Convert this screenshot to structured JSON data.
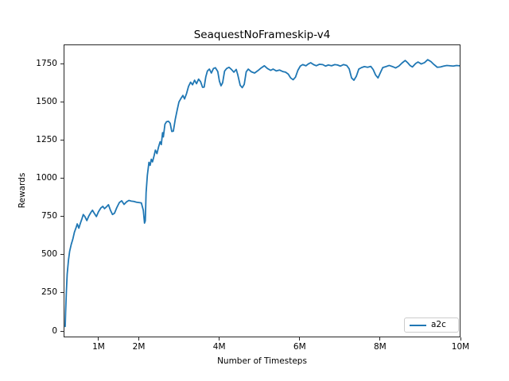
{
  "chart_data": {
    "type": "line",
    "title": "SeaquestNoFrameskip-v4",
    "xlabel": "Number of Timesteps",
    "ylabel": "Rewards",
    "grid": false,
    "line_color": "#1f77b4",
    "legend": {
      "position": "lower right",
      "entries": [
        {
          "label": "a2c",
          "color": "#1f77b4"
        }
      ]
    },
    "axes": {
      "xlim_millions": [
        0.13,
        10.0
      ],
      "ylim": [
        -41,
        1875
      ],
      "x_ticks": [
        {
          "value_millions": 1,
          "label": "1M"
        },
        {
          "value_millions": 2,
          "label": "2M"
        },
        {
          "value_millions": 4,
          "label": "4M"
        },
        {
          "value_millions": 6,
          "label": "6M"
        },
        {
          "value_millions": 8,
          "label": "8M"
        },
        {
          "value_millions": 10,
          "label": "10M"
        }
      ],
      "y_ticks": [
        0,
        250,
        500,
        750,
        1000,
        1250,
        1500,
        1750
      ]
    },
    "series": [
      {
        "name": "a2c",
        "color": "#1f77b4",
        "x_millions": [
          0.15,
          0.16,
          0.18,
          0.2,
          0.23,
          0.26,
          0.3,
          0.34,
          0.38,
          0.42,
          0.45,
          0.49,
          0.53,
          0.57,
          0.6,
          0.64,
          0.69,
          0.74,
          0.79,
          0.83,
          0.88,
          0.93,
          0.98,
          1.04,
          1.09,
          1.13,
          1.18,
          1.23,
          1.28,
          1.33,
          1.38,
          1.44,
          1.5,
          1.56,
          1.62,
          1.68,
          1.74,
          1.8,
          1.86,
          1.93,
          2.0,
          2.05,
          2.1,
          2.13,
          2.15,
          2.17,
          2.2,
          2.24,
          2.27,
          2.3,
          2.33,
          2.37,
          2.4,
          2.44,
          2.48,
          2.52,
          2.55,
          2.58,
          2.6,
          2.64,
          2.68,
          2.73,
          2.77,
          2.81,
          2.85,
          2.9,
          2.95,
          2.99,
          3.04,
          3.09,
          3.13,
          3.18,
          3.23,
          3.28,
          3.33,
          3.38,
          3.43,
          3.48,
          3.53,
          3.58,
          3.62,
          3.66,
          3.7,
          3.75,
          3.8,
          3.85,
          3.9,
          3.96,
          4.0,
          4.04,
          4.08,
          4.13,
          4.18,
          4.24,
          4.3,
          4.36,
          4.42,
          4.46,
          4.52,
          4.57,
          4.62,
          4.67,
          4.72,
          4.8,
          4.88,
          4.96,
          5.04,
          5.12,
          5.2,
          5.28,
          5.34,
          5.42,
          5.5,
          5.58,
          5.65,
          5.72,
          5.78,
          5.84,
          5.9,
          5.96,
          6.02,
          6.08,
          6.16,
          6.22,
          6.28,
          6.35,
          6.42,
          6.5,
          6.58,
          6.65,
          6.72,
          6.8,
          6.88,
          6.95,
          7.02,
          7.1,
          7.18,
          7.24,
          7.3,
          7.36,
          7.42,
          7.48,
          7.55,
          7.62,
          7.7,
          7.78,
          7.84,
          7.9,
          7.96,
          8.02,
          8.08,
          8.16,
          8.24,
          8.32,
          8.4,
          8.48,
          8.56,
          8.64,
          8.7,
          8.76,
          8.82,
          8.9,
          8.96,
          9.04,
          9.12,
          9.2,
          9.28,
          9.36,
          9.44,
          9.52,
          9.6,
          9.68,
          9.76,
          9.84,
          9.92,
          10.0
        ],
        "y_rewards": [
          25,
          120,
          260,
          370,
          460,
          520,
          565,
          600,
          645,
          675,
          700,
          672,
          705,
          735,
          762,
          748,
          722,
          752,
          775,
          790,
          768,
          748,
          780,
          805,
          815,
          800,
          812,
          826,
          790,
          762,
          770,
          808,
          840,
          852,
          828,
          845,
          854,
          850,
          848,
          843,
          840,
          838,
          790,
          705,
          720,
          905,
          1020,
          1105,
          1085,
          1125,
          1108,
          1148,
          1185,
          1162,
          1205,
          1240,
          1222,
          1300,
          1272,
          1355,
          1372,
          1375,
          1362,
          1308,
          1310,
          1390,
          1455,
          1502,
          1525,
          1545,
          1522,
          1558,
          1605,
          1632,
          1615,
          1645,
          1622,
          1652,
          1635,
          1598,
          1600,
          1668,
          1705,
          1718,
          1692,
          1722,
          1727,
          1702,
          1638,
          1608,
          1628,
          1705,
          1722,
          1730,
          1716,
          1698,
          1716,
          1680,
          1612,
          1596,
          1618,
          1700,
          1718,
          1700,
          1692,
          1708,
          1725,
          1740,
          1722,
          1710,
          1718,
          1706,
          1712,
          1702,
          1698,
          1685,
          1660,
          1648,
          1665,
          1710,
          1738,
          1748,
          1740,
          1752,
          1760,
          1748,
          1740,
          1750,
          1748,
          1738,
          1745,
          1740,
          1748,
          1745,
          1738,
          1748,
          1742,
          1720,
          1660,
          1645,
          1672,
          1718,
          1728,
          1735,
          1730,
          1736,
          1715,
          1680,
          1660,
          1695,
          1728,
          1735,
          1742,
          1735,
          1726,
          1738,
          1758,
          1775,
          1760,
          1742,
          1732,
          1755,
          1765,
          1752,
          1760,
          1780,
          1768,
          1748,
          1730,
          1732,
          1738,
          1742,
          1740,
          1738,
          1742,
          1740
        ]
      }
    ]
  }
}
